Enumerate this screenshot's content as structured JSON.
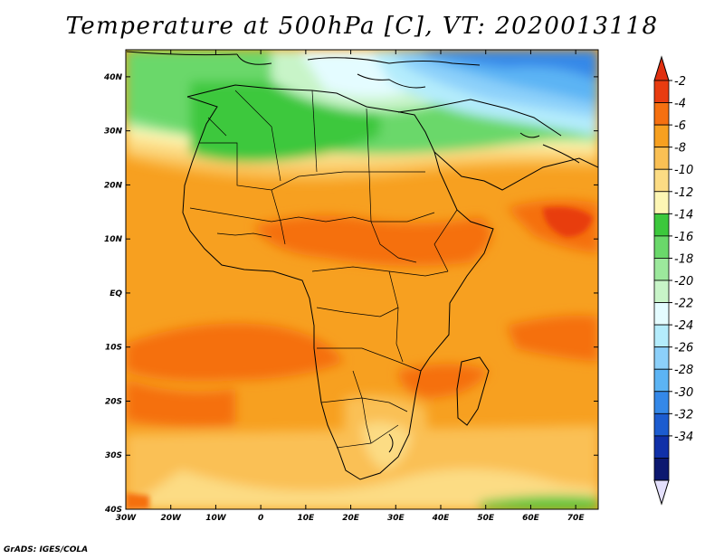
{
  "title": "Temperature at 500hPa [C], VT: 2020013118",
  "footer": "GrADS: IGES/COLA",
  "map": {
    "lon_range": [
      -30,
      75
    ],
    "lat_range": [
      -40,
      45
    ],
    "lon_ticks": [
      {
        "value": -30,
        "label": "30W"
      },
      {
        "value": -20,
        "label": "20W"
      },
      {
        "value": -10,
        "label": "10W"
      },
      {
        "value": 0,
        "label": "0"
      },
      {
        "value": 10,
        "label": "10E"
      },
      {
        "value": 20,
        "label": "20E"
      },
      {
        "value": 30,
        "label": "30E"
      },
      {
        "value": 40,
        "label": "40E"
      },
      {
        "value": 50,
        "label": "50E"
      },
      {
        "value": 60,
        "label": "60E"
      },
      {
        "value": 70,
        "label": "70E"
      }
    ],
    "lat_ticks": [
      {
        "value": 40,
        "label": "40N"
      },
      {
        "value": 30,
        "label": "30N"
      },
      {
        "value": 20,
        "label": "20N"
      },
      {
        "value": 10,
        "label": "10N"
      },
      {
        "value": 0,
        "label": "EQ"
      },
      {
        "value": -10,
        "label": "10S"
      },
      {
        "value": -20,
        "label": "20S"
      },
      {
        "value": -30,
        "label": "30S"
      },
      {
        "value": -40,
        "label": "40S"
      }
    ]
  },
  "colorbar": {
    "labels": [
      "-2",
      "-4",
      "-6",
      "-8",
      "-10",
      "-12",
      "-14",
      "-16",
      "-18",
      "-20",
      "-22",
      "-24",
      "-26",
      "-28",
      "-30",
      "-32",
      "-34"
    ],
    "colors": [
      "#e83c10",
      "#f57010",
      "#f7a020",
      "#fac054",
      "#fcdc84",
      "#fdf6b4",
      "#3cc83c",
      "#6ad86a",
      "#9ce89c",
      "#c8f4c8",
      "#e4fcff",
      "#b4ecfc",
      "#8cd0fa",
      "#5cb4f4",
      "#3488e8",
      "#1c5cd0",
      "#1030a8",
      "#0c1870"
    ],
    "top_color": "#e03010",
    "bottom_color": "#e4e0fc"
  }
}
